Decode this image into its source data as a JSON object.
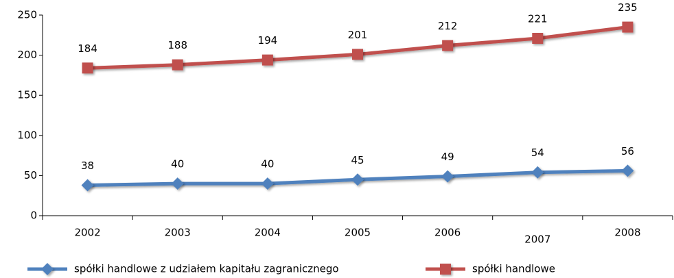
{
  "chart_data": {
    "type": "line",
    "categories": [
      "2002",
      "2003",
      "2004",
      "2005",
      "2006",
      "2007",
      "2008"
    ],
    "series": [
      {
        "name": "spółki handlowe z udziałem kapitału zagranicznego",
        "color": "#4f81bd",
        "marker": "diamond",
        "values": [
          38,
          40,
          40,
          45,
          49,
          54,
          56
        ]
      },
      {
        "name": "spółki handlowe",
        "color": "#c0504d",
        "marker": "square",
        "values": [
          184,
          188,
          194,
          201,
          212,
          221,
          235
        ]
      }
    ],
    "ylim": [
      0,
      250
    ],
    "yticks": [
      0,
      50,
      100,
      150,
      200,
      250
    ],
    "grid": false,
    "legend": "bottom"
  }
}
